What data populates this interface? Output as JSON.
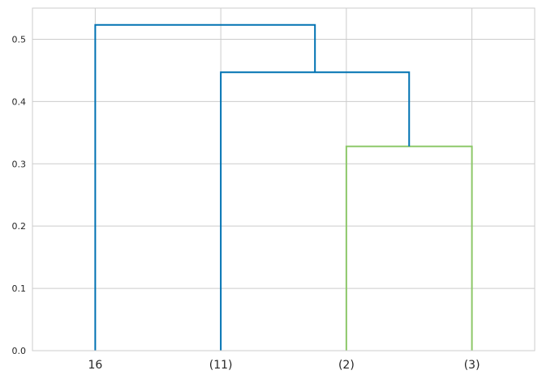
{
  "chart_data": {
    "type": "dendrogram",
    "title": "",
    "xlabel": "",
    "ylabel": "",
    "ylim": [
      0,
      0.55
    ],
    "yticks": [
      0.0,
      0.1,
      0.2,
      0.3,
      0.4,
      0.5
    ],
    "ytick_labels": [
      "0.0",
      "0.1",
      "0.2",
      "0.3",
      "0.4",
      "0.5"
    ],
    "grid": true,
    "leaves": [
      "16",
      "(11)",
      "(2)",
      "(3)"
    ],
    "links": [
      {
        "left": "(2)",
        "right": "(3)",
        "height": 0.328,
        "color": "#8dc869"
      },
      {
        "left": "(11)",
        "right": "(2)+(3)",
        "height": 0.447,
        "color": "#0072b2"
      },
      {
        "left": "16",
        "right": "(11)+(2)+(3)",
        "height": 0.523,
        "color": "#0072b2"
      }
    ],
    "colors": {
      "above_threshold": "#0072b2",
      "cluster": "#8dc869",
      "grid": "#cccccc",
      "axes": "#cccccc"
    }
  }
}
